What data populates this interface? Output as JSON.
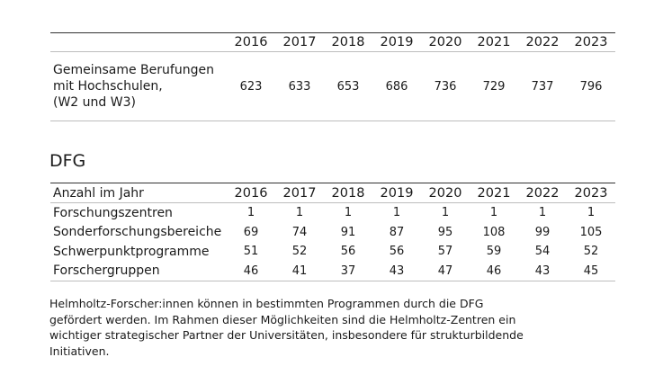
{
  "appointments_table": {
    "years": [
      "2016",
      "2017",
      "2018",
      "2019",
      "2020",
      "2021",
      "2022",
      "2023"
    ],
    "row": {
      "label_lines": [
        "Gemeinsame Berufungen",
        "mit Hochschulen,",
        "(W2 und W3)"
      ],
      "values": [
        "623",
        "633",
        "653",
        "686",
        "736",
        "729",
        "737",
        "796"
      ]
    }
  },
  "dfg_heading": "DFG",
  "dfg_table": {
    "header_label": "Anzahl im Jahr",
    "years": [
      "2016",
      "2017",
      "2018",
      "2019",
      "2020",
      "2021",
      "2022",
      "2023"
    ],
    "rows": [
      {
        "label": "Forschungszentren",
        "values": [
          "1",
          "1",
          "1",
          "1",
          "1",
          "1",
          "1",
          "1"
        ]
      },
      {
        "label": "Sonderforschungsbereiche",
        "values": [
          "69",
          "74",
          "91",
          "87",
          "95",
          "108",
          "99",
          "105"
        ]
      },
      {
        "label": "Schwerpunktprogramme",
        "values": [
          "51",
          "52",
          "56",
          "56",
          "57",
          "59",
          "54",
          "52"
        ]
      },
      {
        "label": "Forschergruppen",
        "values": [
          "46",
          "41",
          "37",
          "43",
          "47",
          "46",
          "43",
          "45"
        ]
      }
    ]
  },
  "footnote_lines": [
    "Helmholtz-Forscher:innen können in bestimmten Programmen durch die DFG",
    "gefördert werden. Im Rahmen dieser Möglichkeiten sind die Helmholtz-Zentren ein",
    "wichtiger strategischer Partner der Universitäten, insbesondere für strukturbildende",
    "Initiativen."
  ]
}
